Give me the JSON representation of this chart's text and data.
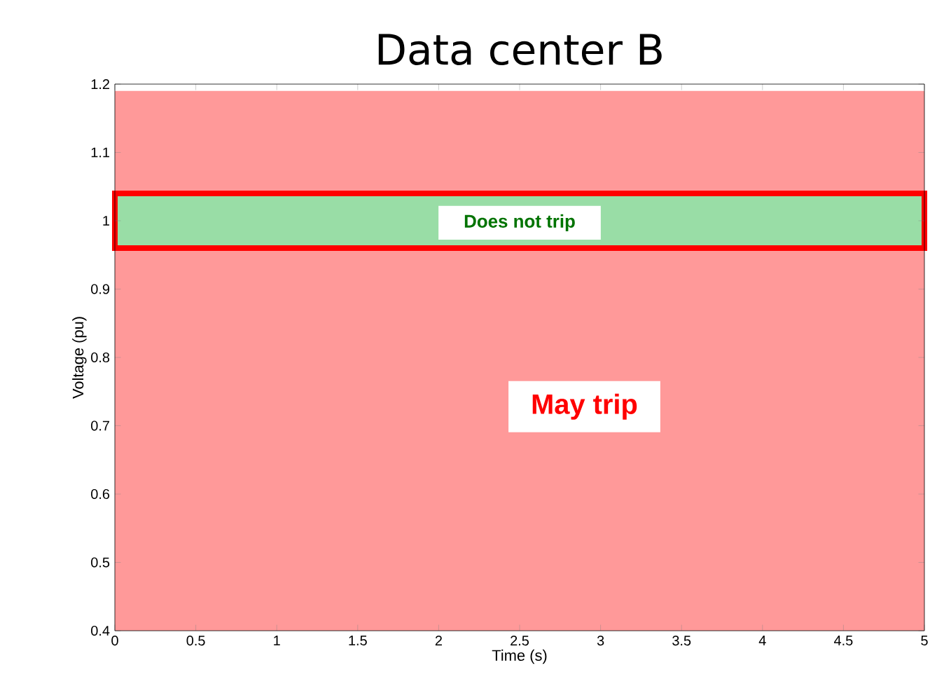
{
  "chart_data": {
    "type": "line",
    "title": "Data center B",
    "xlabel": "Time (s)",
    "ylabel": "Voltage (pu)",
    "xlim": [
      0,
      5
    ],
    "ylim": [
      0.4,
      1.2
    ],
    "xticks": [
      0,
      0.5,
      1,
      1.5,
      2,
      2.5,
      3,
      3.5,
      4,
      4.5,
      5
    ],
    "yticks": [
      0.4,
      0.5,
      0.6,
      0.7,
      0.8,
      0.9,
      1,
      1.1,
      1.2
    ],
    "bands": [
      {
        "axis": "y",
        "from": 0.4,
        "to": 1.19,
        "label": "May trip",
        "color": "#ff9999"
      },
      {
        "axis": "y",
        "from": 0.96,
        "to": 1.04,
        "label": "Does not trip",
        "color": "#99dda6"
      }
    ]
  }
}
